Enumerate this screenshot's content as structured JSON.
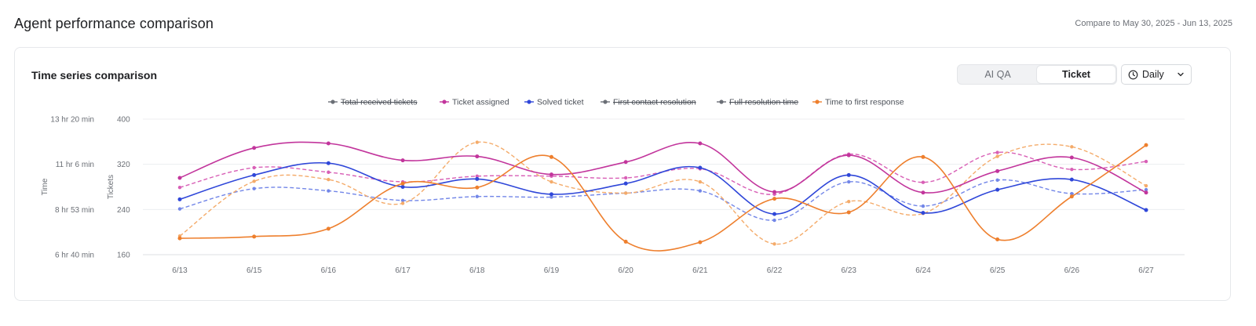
{
  "header": {
    "title": "Agent performance comparison",
    "compare_text": "Compare to May 30, 2025 - Jun 13, 2025"
  },
  "card": {
    "title": "Time series comparison",
    "segments": [
      {
        "label": "AI QA",
        "active": false
      },
      {
        "label": "Ticket",
        "active": true
      }
    ],
    "period": {
      "label": "Daily",
      "icon": "clock-icon",
      "dropdown_icon": "chevron-down-icon"
    }
  },
  "chart_data": {
    "type": "line",
    "categories": [
      "6/13",
      "6/15",
      "6/16",
      "6/17",
      "6/18",
      "6/19",
      "6/20",
      "6/21",
      "6/22",
      "6/23",
      "6/24",
      "6/25",
      "6/26",
      "6/27"
    ],
    "left_axis": {
      "title": "Time",
      "ticks": [
        "6 hr 40 min",
        "8 hr 53 min",
        "11 hr 6 min",
        "13 hr 20 min"
      ]
    },
    "right_axis": {
      "title": "Tickets",
      "ticks": [
        "160",
        "240",
        "320",
        "400"
      ],
      "ylim": [
        160,
        400
      ]
    },
    "grid": true,
    "legend_position": "top-center",
    "legend": [
      {
        "name": "Total received tickets",
        "color": "#6b6f76",
        "hidden": true
      },
      {
        "name": "Ticket assigned",
        "color": "#c2359c",
        "hidden": false
      },
      {
        "name": "Solved ticket",
        "color": "#2f47d9",
        "hidden": false
      },
      {
        "name": "First contact resolution",
        "color": "#6b6f76",
        "hidden": true
      },
      {
        "name": "Full resolution time",
        "color": "#6b6f76",
        "hidden": true
      },
      {
        "name": "Time to first response",
        "color": "#ee7f2d",
        "hidden": false
      }
    ],
    "series": [
      {
        "name": "Ticket assigned",
        "color": "#c2359c",
        "dashed": false,
        "axis": "right",
        "values": [
          296,
          349,
          357,
          327,
          334,
          302,
          324,
          357,
          271,
          336,
          270,
          308,
          332,
          270
        ]
      },
      {
        "name": "Solved ticket",
        "color": "#2f47d9",
        "dashed": false,
        "axis": "right",
        "values": [
          258,
          301,
          322,
          280,
          294,
          267,
          286,
          314,
          232,
          301,
          234,
          275,
          293,
          239
        ]
      },
      {
        "name": "Time to first response",
        "color": "#ee7f2d",
        "dashed": false,
        "axis": "right",
        "values": [
          189,
          192,
          206,
          286,
          279,
          333,
          183,
          182,
          259,
          235,
          333,
          187,
          263,
          354
        ]
      },
      {
        "color": "#d85fb6",
        "dashed": true,
        "axis": "right",
        "values": [
          279,
          314,
          306,
          289,
          299,
          299,
          296,
          312,
          267,
          338,
          288,
          341,
          311,
          325
        ]
      },
      {
        "color": "#7286e8",
        "dashed": true,
        "axis": "right",
        "values": [
          241,
          277,
          273,
          256,
          263,
          262,
          269,
          273,
          221,
          289,
          246,
          292,
          268,
          275
        ]
      },
      {
        "color": "#f4ab6a",
        "dashed": true,
        "axis": "right",
        "values": [
          193,
          290,
          293,
          251,
          359,
          289,
          269,
          289,
          179,
          254,
          233,
          334,
          351,
          282
        ]
      }
    ]
  }
}
